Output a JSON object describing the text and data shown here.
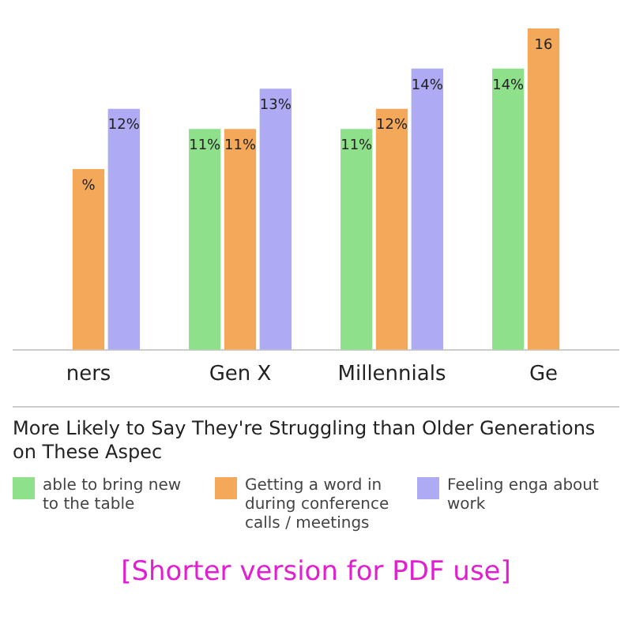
{
  "chart_data": {
    "type": "bar",
    "title": "More Likely to Say They're Struggling than Older Generations on These Aspec",
    "categories": [
      "ners",
      "Gen X",
      "Millennials",
      "Ge"
    ],
    "series": [
      {
        "name": "able to bring new to the table",
        "color": "#8ee08a",
        "values": [
          null,
          11,
          11,
          14
        ],
        "value_labels": [
          null,
          "11%",
          "11%",
          "14%"
        ]
      },
      {
        "name": "Getting a word in during conference calls / meetings",
        "color": "#f4a85a",
        "values": [
          9,
          11,
          12,
          16
        ],
        "value_labels": [
          "%",
          "11%",
          "12%",
          "16"
        ]
      },
      {
        "name": "Feeling enga about work",
        "color": "#aeaaf4",
        "values": [
          12,
          13,
          14,
          null
        ],
        "value_labels": [
          "12%",
          "13%",
          "14%",
          null
        ]
      }
    ],
    "grid": false,
    "legend": "bottom",
    "annotations": [
      "[Shorter version for PDF use]"
    ]
  }
}
